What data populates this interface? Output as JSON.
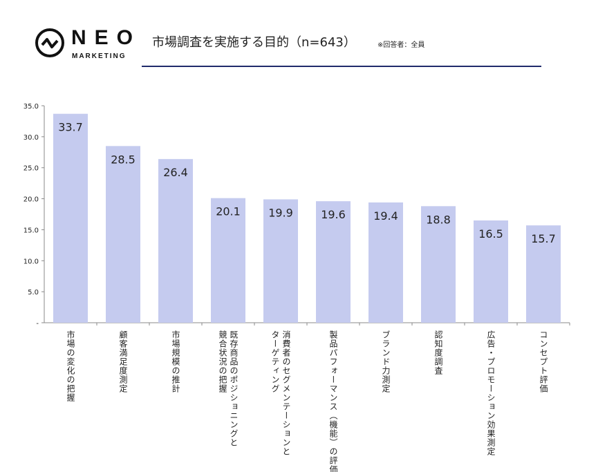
{
  "header": {
    "logo_text": "NEO",
    "logo_sub": "MARKETING",
    "title": "市場調査を実施する目的（n=643）",
    "note": "※回答者：全員",
    "colors": {
      "bar": "#c5cbef",
      "rule": "#1f2a6b"
    }
  },
  "chart_data": {
    "type": "bar",
    "title": "市場調査を実施する目的（n=643）",
    "categories": [
      "市場の変化の把握",
      "顧客満足度測定",
      "市場規模の推計",
      "既存商品のポジショニングと\n競合状況の把握",
      "消費者のセグメンテーションと\nターゲティング",
      "製品パフォーマンス（機能）の評価",
      "ブランド力測定",
      "認知度調査",
      "広告・プロモーション効果測定",
      "コンセプト評価"
    ],
    "values": [
      33.7,
      28.5,
      26.4,
      20.1,
      19.9,
      19.6,
      19.4,
      18.8,
      16.5,
      15.7
    ],
    "value_labels": [
      "33.7",
      "28.5",
      "26.4",
      "20.1",
      "19.9",
      "19.6",
      "19.4",
      "18.8",
      "16.5",
      "15.7"
    ],
    "ylim": [
      0,
      35
    ],
    "yticks": [
      "-",
      "5.0",
      "10.0",
      "15.0",
      "20.0",
      "25.0",
      "30.0",
      "35.0"
    ],
    "grid": false,
    "xlabel": "",
    "ylabel": ""
  }
}
